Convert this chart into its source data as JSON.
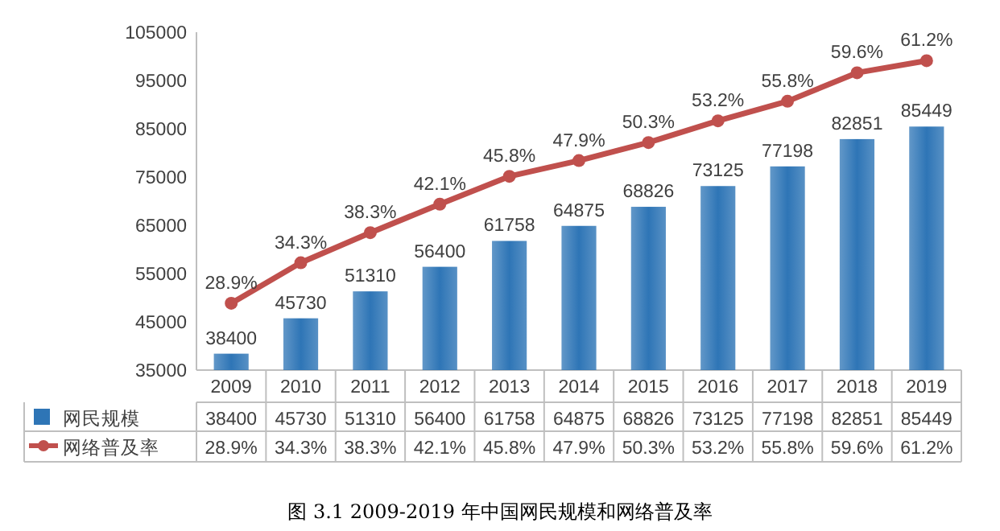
{
  "chart_data": {
    "type": "bar",
    "title": "图 3.1    2009-2019 年中国网民规模和网络普及率",
    "categories": [
      "2009",
      "2010",
      "2011",
      "2012",
      "2013",
      "2014",
      "2015",
      "2016",
      "2017",
      "2018",
      "2019"
    ],
    "series": [
      {
        "name": "网民规模",
        "color": "#2e75b6",
        "values": [
          38400,
          45730,
          51310,
          56400,
          61758,
          64875,
          68826,
          73125,
          77198,
          82851,
          85449
        ],
        "value_labels": [
          "38400",
          "45730",
          "51310",
          "56400",
          "61758",
          "64875",
          "68826",
          "73125",
          "77198",
          "82851",
          "85449"
        ]
      },
      {
        "name": "网络普及率",
        "type": "line",
        "axis": "y2",
        "color": "#c0504d",
        "values": [
          28.9,
          34.3,
          38.3,
          42.1,
          45.8,
          47.9,
          50.3,
          53.2,
          55.8,
          59.6,
          61.2
        ],
        "value_labels": [
          "28.9%",
          "34.3%",
          "38.3%",
          "42.1%",
          "45.8%",
          "47.9%",
          "50.3%",
          "53.2%",
          "55.8%",
          "59.6%",
          "61.2%"
        ]
      }
    ],
    "ylim": [
      35000,
      105000
    ],
    "yticks": [
      35000,
      45000,
      55000,
      65000,
      75000,
      85000,
      95000,
      105000
    ],
    "y2lim": [
      20,
      65
    ],
    "data_labels": true,
    "marker": "circle",
    "grid": false,
    "legend": "bottom"
  }
}
